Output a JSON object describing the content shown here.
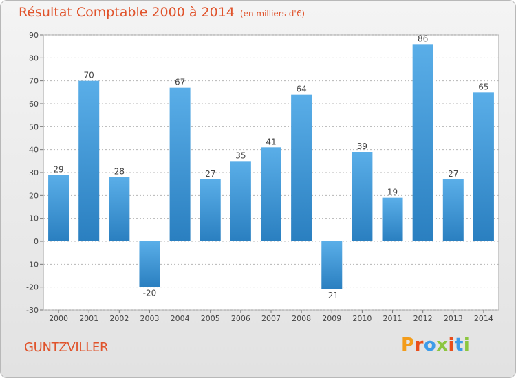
{
  "header": {
    "title": "Résultat Comptable 2000 à 2014",
    "unit": "(en milliers d'€)"
  },
  "footer": {
    "commune": "GUNTZVILLER",
    "brand": "Proxiti",
    "brand_colors": [
      "#f39c1a",
      "#e94e1b",
      "#3d9be9",
      "#8cc63f",
      "#e94e1b",
      "#3d9be9",
      "#8cc63f"
    ]
  },
  "chart_data": {
    "type": "bar",
    "title": "Résultat Comptable 2000 à 2014",
    "subtitle": "(en milliers d'€)",
    "xlabel": "",
    "ylabel": "",
    "ylim": [
      -30,
      90
    ],
    "yticks": [
      -30,
      -20,
      -10,
      0,
      10,
      20,
      30,
      40,
      50,
      60,
      70,
      80,
      90
    ],
    "grid": true,
    "categories": [
      "2000",
      "2001",
      "2002",
      "2003",
      "2004",
      "2005",
      "2006",
      "2007",
      "2008",
      "2009",
      "2010",
      "2011",
      "2012",
      "2013",
      "2014"
    ],
    "values": [
      29,
      70,
      28,
      -20,
      67,
      27,
      35,
      41,
      64,
      -21,
      39,
      19,
      86,
      27,
      65
    ],
    "bar_color_light": "#5aaee8",
    "bar_color_dark": "#2a7fc0"
  }
}
